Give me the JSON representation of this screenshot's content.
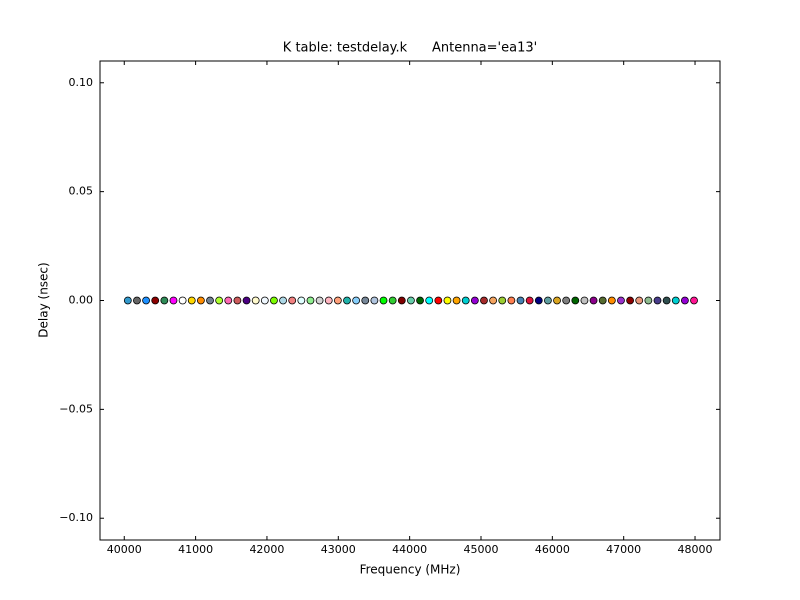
{
  "chart_data": {
    "type": "scatter",
    "title": "K table: testdelay.k      Antenna='ea13'",
    "xlabel": "Frequency (MHz)",
    "ylabel": "Delay (nsec)",
    "x": [
      40050,
      40178,
      40306,
      40434,
      40562,
      40690,
      40818,
      40946,
      41074,
      41202,
      41330,
      41458,
      41586,
      41714,
      41842,
      41970,
      42098,
      42226,
      42354,
      42482,
      42610,
      42738,
      42866,
      42994,
      43122,
      43250,
      43378,
      43506,
      43634,
      43762,
      43890,
      44018,
      44146,
      44274,
      44402,
      44530,
      44658,
      44786,
      44914,
      45042,
      45170,
      45298,
      45426,
      45554,
      45682,
      45810,
      45938,
      46066,
      46194,
      46322,
      46450,
      46578,
      46706,
      46834,
      46962,
      47090,
      47218,
      47346,
      47474,
      47602,
      47730,
      47858,
      47986
    ],
    "values": [
      0,
      0,
      0,
      0,
      0,
      0,
      0,
      0,
      0,
      0,
      0,
      0,
      0,
      0,
      0,
      0,
      0,
      0,
      0,
      0,
      0,
      0,
      0,
      0,
      0,
      0,
      0,
      0,
      0,
      0,
      0,
      0,
      0,
      0,
      0,
      0,
      0,
      0,
      0,
      0,
      0,
      0,
      0,
      0,
      0,
      0,
      0,
      0,
      0,
      0,
      0,
      0,
      0,
      0,
      0,
      0,
      0,
      0,
      0,
      0,
      0,
      0,
      0
    ],
    "colors": [
      "#3399cc",
      "#666666",
      "#1e90ff",
      "#8b0000",
      "#2e8b57",
      "#ff00ff",
      "#ffffff",
      "#ffd700",
      "#ff8c00",
      "#708090",
      "#adff2f",
      "#ff69b4",
      "#cd5c5c",
      "#4b0082",
      "#fffacd",
      "#f0f8ff",
      "#7cfc00",
      "#add8e6",
      "#f08080",
      "#e0ffff",
      "#90ee90",
      "#d3d3d3",
      "#ffb6c1",
      "#ffa07a",
      "#20b2aa",
      "#87cefa",
      "#778899",
      "#b0c4de",
      "#00ff00",
      "#32cd32",
      "#800000",
      "#66cdaa",
      "#006400",
      "#00ffff",
      "#ff0000",
      "#ffff00",
      "#ffa500",
      "#00ced1",
      "#9400d3",
      "#a52a2a",
      "#f4a460",
      "#9acd32",
      "#ff7f50",
      "#4682b4",
      "#dc143c",
      "#000080",
      "#5f9ea0",
      "#daa520",
      "#808080",
      "#006400",
      "#c0c0c0",
      "#8b008b",
      "#556b2f",
      "#ff8c00",
      "#9932cc",
      "#8b0000",
      "#e9967a",
      "#8fbc8f",
      "#483d8b",
      "#2f4f4f",
      "#00ced1",
      "#9400d3",
      "#ff1493"
    ],
    "xlim": [
      39660,
      48350
    ],
    "ylim": [
      -0.11,
      0.11
    ],
    "xticks": [
      40000,
      41000,
      42000,
      43000,
      44000,
      45000,
      46000,
      47000,
      48000
    ],
    "yticks": [
      {
        "value": -0.1,
        "label": "−0.10"
      },
      {
        "value": -0.05,
        "label": "−0.05"
      },
      {
        "value": 0,
        "label": "0.00"
      },
      {
        "value": 0.05,
        "label": "0.05"
      },
      {
        "value": 0.1,
        "label": "0.10"
      }
    ]
  }
}
